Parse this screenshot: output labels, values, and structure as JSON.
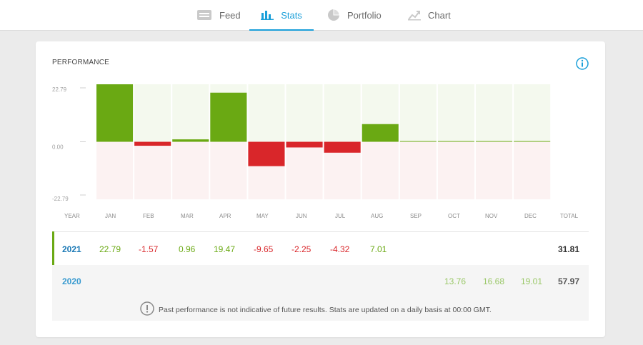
{
  "nav": {
    "tabs": [
      {
        "label": "Feed",
        "icon": "feed-icon"
      },
      {
        "label": "Stats",
        "icon": "stats-icon",
        "active": true
      },
      {
        "label": "Portfolio",
        "icon": "pie-chart-icon"
      },
      {
        "label": "Chart",
        "icon": "line-chart-icon"
      }
    ]
  },
  "performance": {
    "title": "PERFORMANCE",
    "header": {
      "year": "YEAR",
      "months": [
        "JAN",
        "FEB",
        "MAR",
        "APR",
        "MAY",
        "JUN",
        "JUL",
        "AUG",
        "SEP",
        "OCT",
        "NOV",
        "DEC"
      ],
      "total": "TOTAL"
    },
    "rows": [
      {
        "year": "2021",
        "values": [
          "22.79",
          "-1.57",
          "0.96",
          "19.47",
          "-9.65",
          "-2.25",
          "-4.32",
          "7.01",
          "",
          "",
          "",
          ""
        ],
        "total": "31.81"
      },
      {
        "year": "2020",
        "values": [
          "",
          "",
          "",
          "",
          "",
          "",
          "",
          "",
          "",
          "13.76",
          "16.68",
          "19.01"
        ],
        "total": "57.97"
      }
    ],
    "disclaimer": "Past performance is not indicative of future results. Stats are updated on a daily basis at 00:00 GMT."
  },
  "chart_data": {
    "type": "bar",
    "categories": [
      "JAN",
      "FEB",
      "MAR",
      "APR",
      "MAY",
      "JUN",
      "JUL",
      "AUG",
      "SEP",
      "OCT",
      "NOV",
      "DEC"
    ],
    "values": [
      22.79,
      -1.57,
      0.96,
      19.47,
      -9.65,
      -2.25,
      -4.32,
      7.01,
      0,
      0,
      0,
      0
    ],
    "yticks": [
      "22.79",
      "0.00",
      "-22.79"
    ],
    "ylim": [
      -22.79,
      22.79
    ],
    "colors": {
      "positive": "#6aa913",
      "negative": "#d9262a",
      "pos_bg": "#f4f9ee",
      "neg_bg": "#fcf2f2"
    }
  }
}
